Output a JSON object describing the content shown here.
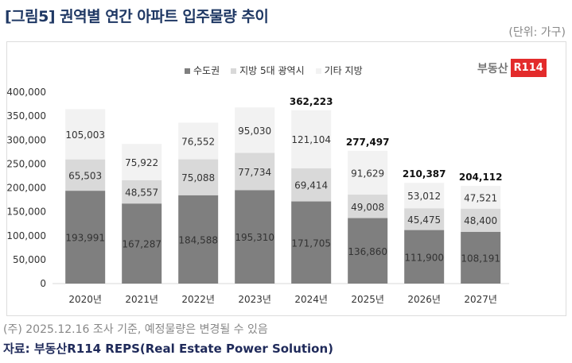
{
  "title": "[그림5] 권역별 연간 아파트 입주물량 추이",
  "unit": "(단위: 가구)",
  "logo": {
    "text": "부동산",
    "badge": "R114"
  },
  "note": "(주) 2025.12.16 조사 기준, 예정물량은 변경될 수 있음",
  "source": "자료: 부동산R114 REPS(Real Estate Power Solution)",
  "chart_data": {
    "type": "bar",
    "stacked": true,
    "categories": [
      "2020년",
      "2021년",
      "2022년",
      "2023년",
      "2024년",
      "2025년",
      "2026년",
      "2027년"
    ],
    "series": [
      {
        "name": "수도권",
        "color": "#7f7f7f",
        "values": [
          193991,
          167287,
          184588,
          195310,
          171705,
          136860,
          111900,
          108191
        ]
      },
      {
        "name": "지방 5대 광역시",
        "color": "#d9d9d9",
        "values": [
          65503,
          48557,
          75088,
          77734,
          69414,
          49008,
          45475,
          48400
        ]
      },
      {
        "name": "기타 지방",
        "color": "#f2f2f2",
        "values": [
          105003,
          75922,
          76552,
          95030,
          121104,
          91629,
          53012,
          47521
        ]
      }
    ],
    "totals": [
      null,
      null,
      null,
      null,
      "362,223",
      "277,497",
      "210,387",
      "204,112"
    ],
    "labels": [
      [
        "193,991",
        "167,287",
        "184,588",
        "195,310",
        "171,705",
        "136,860",
        "111,900",
        "108,191"
      ],
      [
        "65,503",
        "48,557",
        "75,088",
        "77,734",
        "69,414",
        "49,008",
        "45,475",
        "48,400"
      ],
      [
        "105,003",
        "75,922",
        "76,552",
        "95,030",
        "121,104",
        "91,629",
        "53,012",
        "47,521"
      ]
    ],
    "yticks": [
      "0",
      "50,000",
      "100,000",
      "150,000",
      "200,000",
      "250,000",
      "300,000",
      "350,000",
      "400,000"
    ],
    "ylim": [
      0,
      400000
    ],
    "grid": false,
    "legend": "top"
  }
}
